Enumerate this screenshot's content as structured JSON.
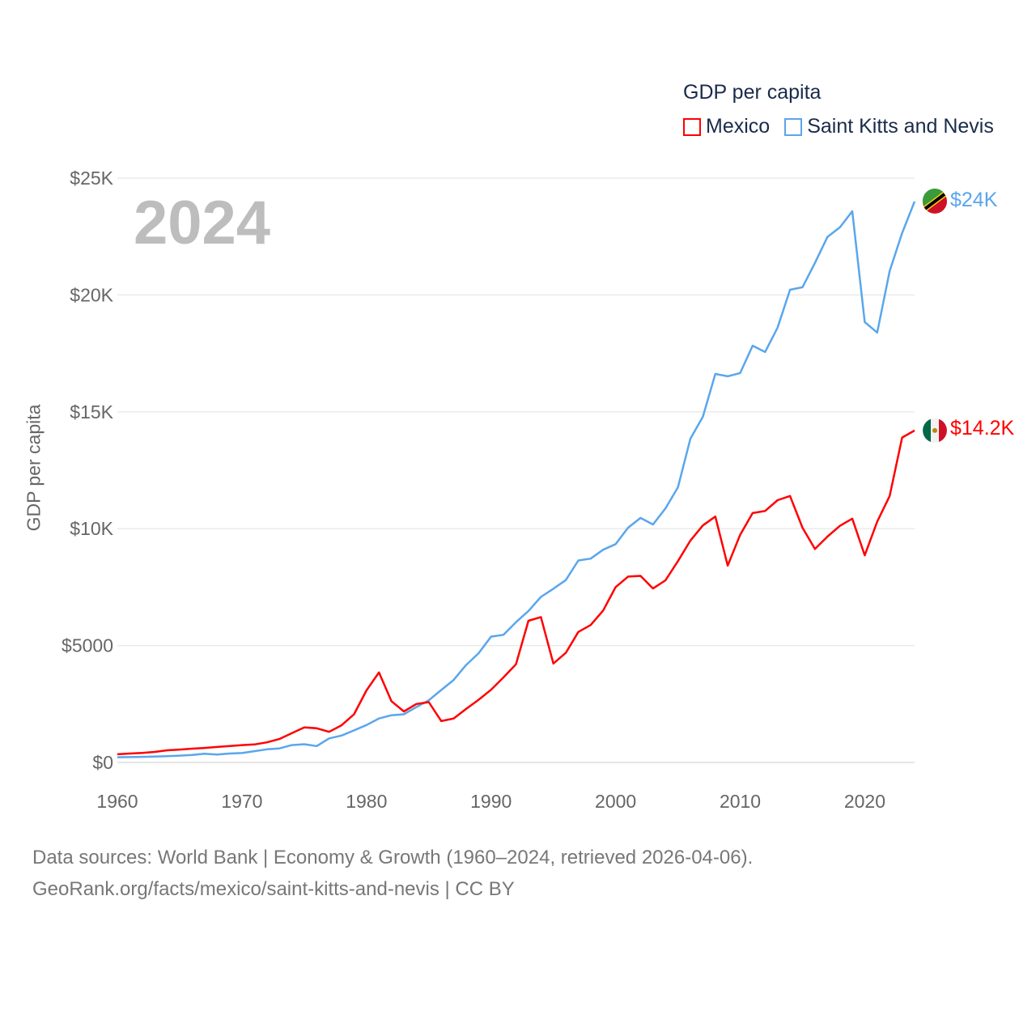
{
  "chart_data": {
    "type": "line",
    "title": "GDP per capita",
    "ylabel": "GDP per capita",
    "xlabel": "",
    "year_label": "2024",
    "xlim": [
      1960,
      2024
    ],
    "ylim": [
      0,
      25000
    ],
    "grid": true,
    "legend_position": "top-right",
    "x_ticks": [
      1960,
      1970,
      1980,
      1990,
      2000,
      2010,
      2020
    ],
    "x_tick_labels": [
      "1960",
      "1970",
      "1980",
      "1990",
      "2000",
      "2010",
      "2020"
    ],
    "y_ticks": [
      0,
      5000,
      10000,
      15000,
      20000,
      25000
    ],
    "y_tick_labels": [
      "$0",
      "$5000",
      "$10K",
      "$15K",
      "$20K",
      "$25K"
    ],
    "x": [
      1960,
      1961,
      1962,
      1963,
      1964,
      1965,
      1966,
      1967,
      1968,
      1969,
      1970,
      1971,
      1972,
      1973,
      1974,
      1975,
      1976,
      1977,
      1978,
      1979,
      1980,
      1981,
      1982,
      1983,
      1984,
      1985,
      1986,
      1987,
      1988,
      1989,
      1990,
      1991,
      1992,
      1993,
      1994,
      1995,
      1996,
      1997,
      1998,
      1999,
      2000,
      2001,
      2002,
      2003,
      2004,
      2005,
      2006,
      2007,
      2008,
      2009,
      2010,
      2011,
      2012,
      2013,
      2014,
      2015,
      2016,
      2017,
      2018,
      2019,
      2020,
      2021,
      2022,
      2023,
      2024
    ],
    "series": [
      {
        "name": "Mexico",
        "color": "#ff0000",
        "end_label": "$14.2K",
        "values": [
          350,
          380,
          410,
          450,
          520,
          550,
          590,
          620,
          660,
          700,
          740,
          770,
          860,
          1000,
          1250,
          1500,
          1460,
          1310,
          1590,
          2060,
          3080,
          3850,
          2620,
          2180,
          2500,
          2580,
          1770,
          1880,
          2290,
          2680,
          3110,
          3640,
          4200,
          6060,
          6220,
          4230,
          4690,
          5580,
          5880,
          6500,
          7500,
          7950,
          7980,
          7440,
          7790,
          8610,
          9490,
          10140,
          10520,
          8420,
          9740,
          10670,
          10760,
          11220,
          11400,
          10040,
          9130,
          9660,
          10120,
          10430,
          8860,
          10300,
          11400,
          13900,
          14200
        ]
      },
      {
        "name": "Saint Kitts and Nevis",
        "color": "#5aa6ec",
        "end_label": "$24K",
        "values": [
          220,
          230,
          240,
          250,
          270,
          290,
          320,
          370,
          340,
          380,
          400,
          480,
          560,
          600,
          740,
          780,
          700,
          1030,
          1150,
          1370,
          1600,
          1880,
          2020,
          2060,
          2370,
          2660,
          3100,
          3530,
          4170,
          4670,
          5380,
          5460,
          6000,
          6480,
          7080,
          7430,
          7800,
          8640,
          8720,
          9100,
          9340,
          10040,
          10460,
          10180,
          10870,
          11770,
          13850,
          14790,
          16620,
          16520,
          16660,
          17830,
          17560,
          18600,
          20220,
          20330,
          21370,
          22480,
          22890,
          23580,
          18840,
          18390,
          21020,
          22650,
          24000
        ]
      }
    ]
  },
  "footer": {
    "line1": "Data sources: World Bank | Economy & Growth (1960–2024, retrieved 2026-04-06).",
    "line2": "GeoRank.org/facts/mexico/saint-kitts-and-nevis | CC BY"
  }
}
